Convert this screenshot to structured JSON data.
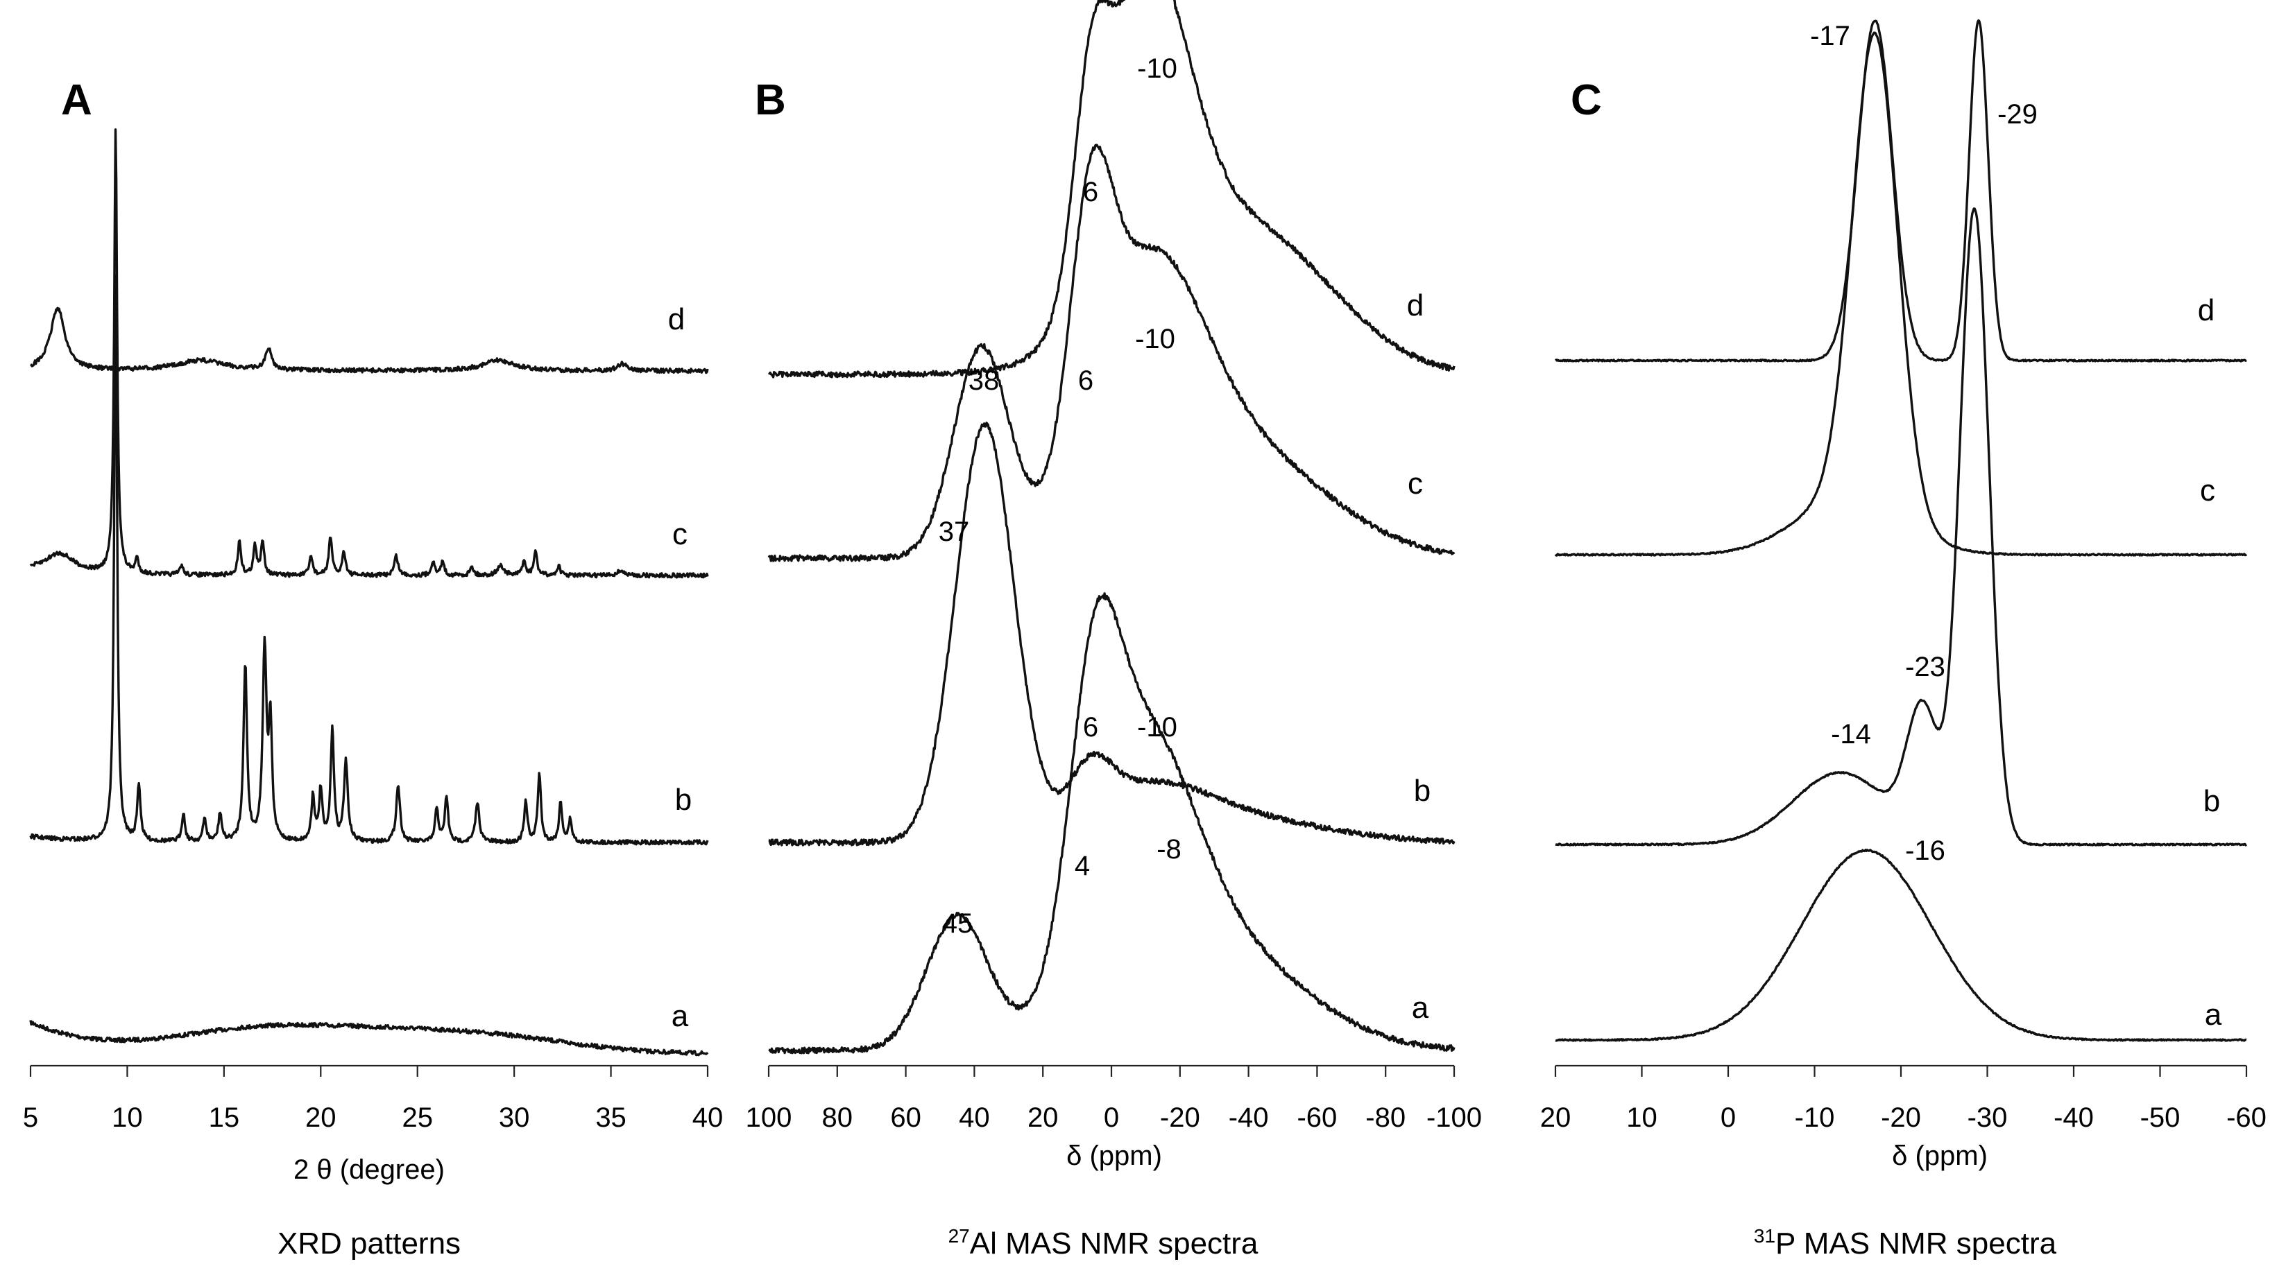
{
  "chart_data": [
    {
      "panel": "A",
      "type": "line",
      "title": "XRD patterns",
      "xlabel": "2 θ (degree)",
      "ylabel": "",
      "xlim": [
        5,
        40
      ],
      "xticks": [
        "5",
        "10",
        "15",
        "20",
        "25",
        "30",
        "35",
        "40"
      ],
      "series": [
        {
          "name": "a",
          "shape": "amorphous",
          "baseline": 0,
          "peaks": []
        },
        {
          "name": "b",
          "shape": "crystalline",
          "baseline": 0,
          "peaks": [
            [
              9.4,
              1.0,
              0.09
            ],
            [
              10.6,
              0.1,
              0.1
            ],
            [
              12.9,
              0.05,
              0.1
            ],
            [
              14.0,
              0.04,
              0.1
            ],
            [
              14.8,
              0.05,
              0.1
            ],
            [
              16.1,
              0.31,
              0.11
            ],
            [
              17.1,
              0.34,
              0.12
            ],
            [
              17.4,
              0.2,
              0.1
            ],
            [
              19.6,
              0.08,
              0.1
            ],
            [
              20.0,
              0.09,
              0.1
            ],
            [
              20.6,
              0.2,
              0.1
            ],
            [
              21.3,
              0.14,
              0.12
            ],
            [
              24.0,
              0.1,
              0.12
            ],
            [
              26.0,
              0.06,
              0.1
            ],
            [
              26.5,
              0.08,
              0.1
            ],
            [
              28.1,
              0.07,
              0.12
            ],
            [
              30.6,
              0.07,
              0.1
            ],
            [
              31.3,
              0.12,
              0.1
            ],
            [
              32.4,
              0.07,
              0.1
            ],
            [
              32.9,
              0.04,
              0.1
            ]
          ]
        },
        {
          "name": "c",
          "shape": "crystalline",
          "baseline": 0,
          "peaks": [
            [
              6.5,
              0.04,
              0.9
            ],
            [
              9.4,
              0.92,
              0.09
            ],
            [
              10.5,
              0.03,
              0.1
            ],
            [
              12.8,
              0.02,
              0.1
            ],
            [
              15.8,
              0.07,
              0.1
            ],
            [
              16.6,
              0.06,
              0.1
            ],
            [
              17.0,
              0.07,
              0.1
            ],
            [
              19.5,
              0.04,
              0.1
            ],
            [
              20.5,
              0.08,
              0.1
            ],
            [
              21.2,
              0.05,
              0.1
            ],
            [
              23.9,
              0.04,
              0.12
            ],
            [
              25.8,
              0.03,
              0.1
            ],
            [
              26.3,
              0.03,
              0.1
            ],
            [
              27.8,
              0.02,
              0.1
            ],
            [
              29.3,
              0.02,
              0.2
            ],
            [
              30.5,
              0.03,
              0.1
            ],
            [
              31.1,
              0.05,
              0.1
            ],
            [
              32.3,
              0.02,
              0.1
            ],
            [
              35.5,
              0.01,
              0.2
            ]
          ]
        },
        {
          "name": "d",
          "shape": "layered",
          "baseline": 0,
          "peaks": [
            [
              6.4,
              0.09,
              0.45
            ],
            [
              13.8,
              0.015,
              1.5
            ],
            [
              17.3,
              0.03,
              0.2
            ],
            [
              29.2,
              0.015,
              1.0
            ],
            [
              35.6,
              0.01,
              0.3
            ]
          ]
        }
      ]
    },
    {
      "panel": "B",
      "type": "line",
      "title": "²⁷Al MAS NMR spectra",
      "caption_sup": "27",
      "caption_rest": "Al MAS NMR spectra",
      "xlabel": "δ (ppm)",
      "xlim": [
        100,
        -100
      ],
      "xticks": [
        "100",
        "80",
        "60",
        "40",
        "20",
        "0",
        "-20",
        "-40",
        "-60",
        "-80",
        "-100"
      ],
      "series": [
        {
          "name": "a",
          "peak_labels": [
            "45",
            "4",
            "-8"
          ],
          "peaks": [
            [
              45,
              0.32,
              9
            ],
            [
              5,
              0.55,
              7
            ],
            [
              -8,
              0.6,
              15
            ],
            [
              -30,
              0.25,
              25
            ]
          ]
        },
        {
          "name": "b",
          "peak_labels": [
            "37",
            "6",
            "-10"
          ],
          "peaks": [
            [
              37,
              1.0,
              8.5
            ],
            [
              6,
              0.12,
              6
            ],
            [
              -10,
              0.12,
              18
            ],
            [
              -40,
              0.05,
              25
            ]
          ]
        },
        {
          "name": "c",
          "peak_labels": [
            "38",
            "6",
            "-10"
          ],
          "peaks": [
            [
              38,
              0.5,
              8
            ],
            [
              6,
              0.55,
              6
            ],
            [
              -10,
              0.6,
              16
            ],
            [
              -38,
              0.25,
              25
            ]
          ]
        },
        {
          "name": "d",
          "peak_labels": [
            "6",
            "-10"
          ],
          "peaks": [
            [
              6,
              0.45,
              5
            ],
            [
              -10,
              0.82,
              12
            ],
            [
              -30,
              0.35,
              25
            ],
            [
              -55,
              0.1,
              20
            ]
          ]
        }
      ]
    },
    {
      "panel": "C",
      "type": "line",
      "title": "³¹P MAS NMR spectra",
      "caption_sup": "31",
      "caption_rest": "P MAS NMR spectra",
      "xlabel": "δ (ppm)",
      "xlim": [
        20,
        -60
      ],
      "xticks": [
        "20",
        "10",
        "0",
        "-10",
        "-20",
        "-30",
        "-40",
        "-50",
        "-60"
      ],
      "series": [
        {
          "name": "a",
          "peak_labels": [
            "-16"
          ],
          "peaks": [
            [
              -16,
              0.36,
              7.5
            ]
          ]
        },
        {
          "name": "b",
          "peak_labels": [
            "-14",
            "-23",
            "-29"
          ],
          "peaks": [
            [
              -13,
              0.17,
              5.5
            ],
            [
              -22.5,
              0.3,
              1.8
            ],
            [
              -28.5,
              1.5,
              1.7
            ]
          ]
        },
        {
          "name": "c",
          "peak_labels": [
            "-17"
          ],
          "peaks": [
            [
              -17,
              1.0,
              2.6
            ],
            [
              -14,
              0.12,
              6
            ]
          ]
        },
        {
          "name": "d",
          "peak_labels": [
            "-17",
            "-29"
          ],
          "peaks": [
            [
              -17,
              0.7,
              2.0
            ],
            [
              -29,
              0.7,
              1.1
            ]
          ]
        }
      ]
    }
  ],
  "panels": {
    "A": {
      "letter": "A",
      "caption": "XRD patterns",
      "xlabel": "2 θ (degree)"
    },
    "B": {
      "letter": "B",
      "caption_sup": "27",
      "caption_rest": "Al MAS NMR spectra",
      "xlabel": "δ (ppm)"
    },
    "C": {
      "letter": "C",
      "caption_sup": "31",
      "caption_rest": "P MAS NMR spectra",
      "xlabel": "δ (ppm)"
    }
  }
}
